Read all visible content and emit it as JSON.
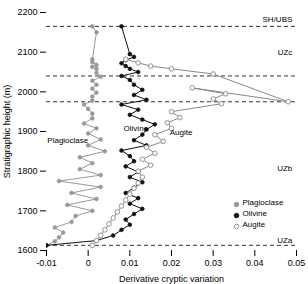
{
  "chart_data": {
    "type": "line",
    "xlabel": "Derivative cryptic variation",
    "ylabel": "Stratigraphic height (m)",
    "xlim": [
      -0.01,
      0.05
    ],
    "ylim": [
      1600,
      2200
    ],
    "xticks": [
      -0.01,
      0,
      0.01,
      0.02,
      0.03,
      0.04,
      0.05
    ],
    "yticks": [
      1600,
      1700,
      1800,
      1900,
      2000,
      2100,
      2200
    ],
    "grid": false,
    "legend": "lower right",
    "series": [
      {
        "name": "Plagioclase",
        "color": "#999999",
        "marker": "circle",
        "x": [
          -0.01,
          -0.008,
          -0.007,
          -0.006,
          -0.008,
          -0.004,
          -0.003,
          0.001,
          -0.005,
          0.002,
          -0.004,
          0.003,
          -0.007,
          0.003,
          -0.002,
          0.001,
          -0.002,
          0.004,
          0.0,
          0.003,
          0.0,
          0.002,
          -0.001,
          0.001,
          0.001,
          0.0,
          -0.001,
          0.001,
          0.001,
          0.002,
          0.001,
          0.002,
          0.001,
          0.003,
          0.002,
          0.002,
          0.001,
          0.002,
          0.001,
          0.001,
          0.002,
          0.001
        ],
        "values": [
          1613,
          1623,
          1633,
          1645,
          1658,
          1672,
          1687,
          1700,
          1715,
          1730,
          1745,
          1760,
          1775,
          1790,
          1805,
          1820,
          1835,
          1850,
          1865,
          1880,
          1895,
          1908,
          1920,
          1933,
          1945,
          1957,
          1968,
          1978,
          1988,
          1998,
          2008,
          2018,
          2028,
          2038,
          2048,
          2058,
          2063,
          2068,
          2075,
          2082,
          2150,
          2165
        ]
      },
      {
        "name": "Olivine",
        "color": "#111111",
        "marker": "circle",
        "x": [
          -0.01,
          0.002,
          0.006,
          0.008,
          0.01,
          0.009,
          0.011,
          0.013,
          0.01,
          0.012,
          0.009,
          0.011,
          0.013,
          0.01,
          0.012,
          0.009,
          0.011,
          0.01,
          0.008,
          0.014,
          0.011,
          0.013,
          0.014,
          0.016,
          0.013,
          0.01,
          0.012,
          0.008,
          0.014,
          0.011,
          0.013,
          0.011,
          0.01,
          0.008,
          0.012,
          0.01,
          0.009,
          0.008,
          0.009,
          0.011,
          0.01,
          0.008
        ],
        "values": [
          1613,
          1625,
          1638,
          1652,
          1665,
          1678,
          1692,
          1705,
          1718,
          1732,
          1745,
          1758,
          1772,
          1785,
          1798,
          1812,
          1825,
          1838,
          1852,
          1865,
          1878,
          1892,
          1905,
          1918,
          1930,
          1942,
          1955,
          1968,
          1980,
          1992,
          2005,
          2018,
          2030,
          2040,
          2050,
          2058,
          2065,
          2072,
          2080,
          2088,
          2095,
          2165
        ]
      },
      {
        "name": "Augite",
        "color": "#888888",
        "marker": "open_circle",
        "x": [
          0.001,
          0.002,
          0.003,
          0.004,
          0.005,
          0.006,
          0.007,
          0.008,
          0.009,
          0.01,
          0.011,
          0.012,
          0.013,
          0.012,
          0.015,
          0.013,
          0.016,
          0.014,
          0.018,
          0.016,
          0.02,
          0.019,
          0.022,
          0.02,
          0.032,
          0.03,
          0.033,
          0.025,
          0.048,
          0.03,
          0.02,
          0.015,
          0.012,
          0.009
        ],
        "values": [
          1613,
          1625,
          1638,
          1652,
          1667,
          1682,
          1697,
          1712,
          1727,
          1742,
          1757,
          1770,
          1785,
          1800,
          1815,
          1830,
          1845,
          1860,
          1875,
          1892,
          1908,
          1922,
          1935,
          1950,
          1970,
          1982,
          1995,
          2010,
          1975,
          2045,
          2058,
          2065,
          2073,
          2082
        ]
      }
    ],
    "hlines": [
      1613,
      1975,
      2040,
      2165
    ],
    "annotations": [
      {
        "text": "SH/UBS",
        "x": 0.049,
        "y": 2182
      },
      {
        "text": "UZc",
        "x": 0.049,
        "y": 2100
      },
      {
        "text": "UZb",
        "x": 0.049,
        "y": 1808
      },
      {
        "text": "UZa",
        "x": 0.049,
        "y": 1625
      },
      {
        "text": "Plagioclase",
        "x": -0.0098,
        "y": 1878
      },
      {
        "text": "Olivine",
        "x": 0.0085,
        "y": 1908
      },
      {
        "text": "Augite",
        "x": 0.025,
        "y": 1898
      }
    ]
  }
}
